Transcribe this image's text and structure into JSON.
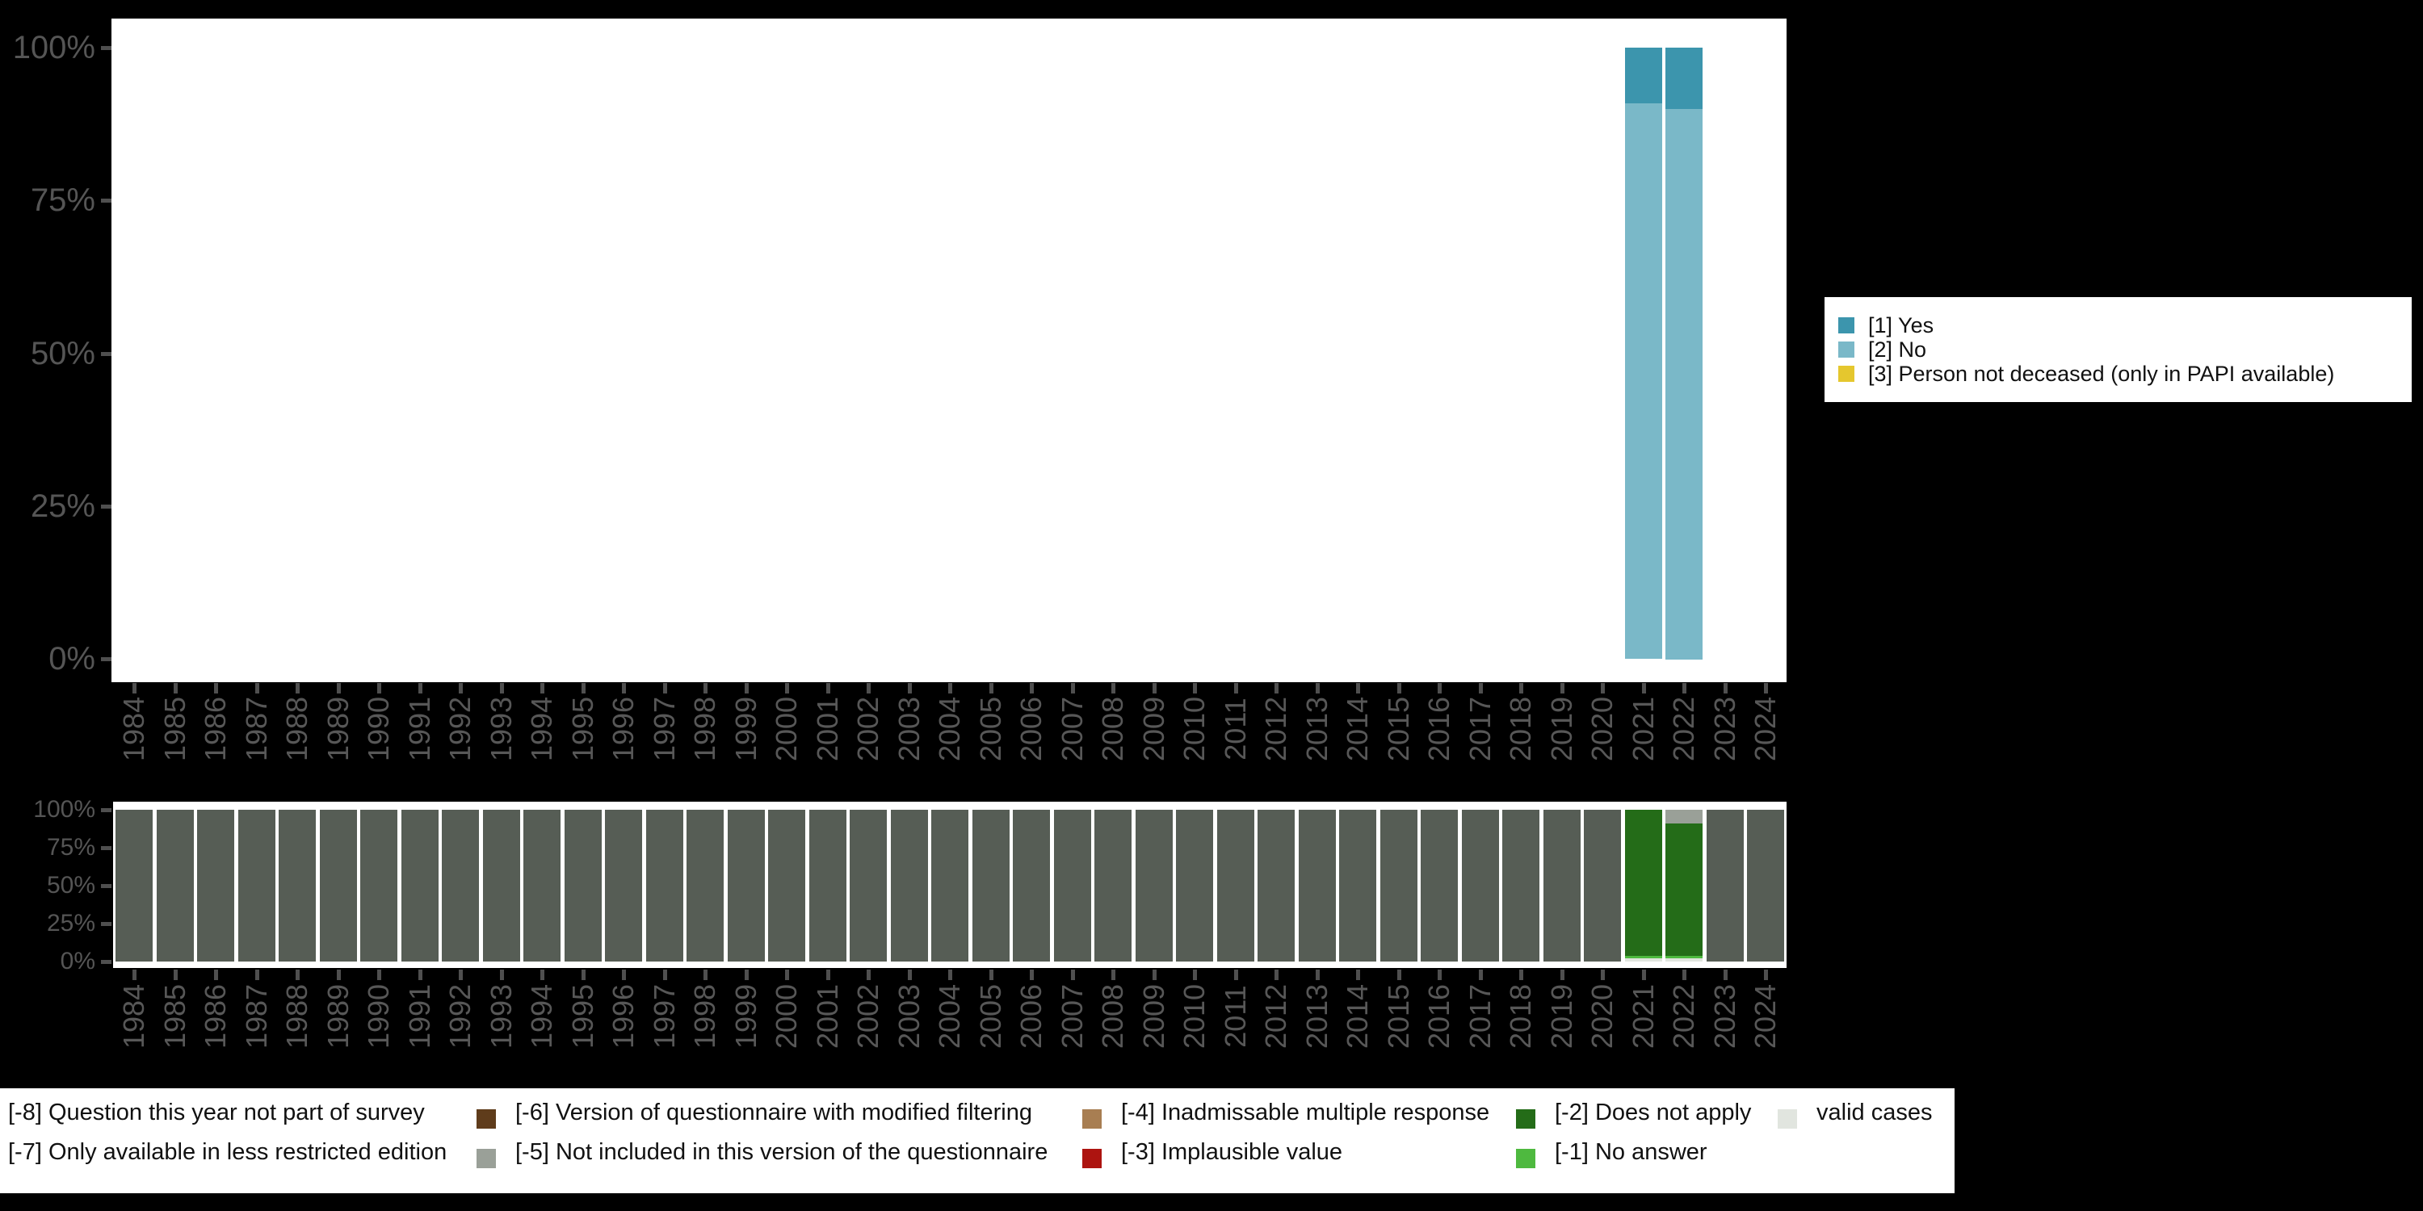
{
  "colors": {
    "background": "#000000",
    "panel": "#ffffff",
    "axis_text": "#555555",
    "tick": "#4f4f4f"
  },
  "chart_data": [
    {
      "id": "response-distribution",
      "type": "bar",
      "stacked": true,
      "title": "",
      "xlabel": "",
      "ylabel": "",
      "ylim": [
        0,
        100
      ],
      "grid": false,
      "y_ticks": [
        {
          "label": "100%",
          "value": 100
        },
        {
          "label": "75%",
          "value": 75
        },
        {
          "label": "50%",
          "value": 50
        },
        {
          "label": "25%",
          "value": 25
        },
        {
          "label": "0%",
          "value": 0
        }
      ],
      "years": [
        "1984",
        "1985",
        "1986",
        "1987",
        "1988",
        "1989",
        "1990",
        "1991",
        "1992",
        "1993",
        "1994",
        "1995",
        "1996",
        "1997",
        "1998",
        "1999",
        "2000",
        "2001",
        "2002",
        "2003",
        "2004",
        "2005",
        "2006",
        "2007",
        "2008",
        "2009",
        "2010",
        "2011",
        "2012",
        "2013",
        "2014",
        "2015",
        "2016",
        "2017",
        "2018",
        "2019",
        "2020",
        "2021",
        "2022",
        "2023",
        "2024"
      ],
      "bars": {
        "2021": [
          {
            "name": "[2] No",
            "value": 91,
            "color": "#7ab8c8"
          },
          {
            "name": "[1] Yes",
            "value": 9,
            "color": "#3c95ad"
          }
        ],
        "2022": [
          {
            "name": "[2] No",
            "value": 90,
            "color": "#7ab8c8"
          },
          {
            "name": "[1] Yes",
            "value": 10,
            "color": "#3c95ad"
          }
        ]
      },
      "legend": {
        "position": "right",
        "entries": [
          {
            "label": "[1] Yes",
            "color": "#3c95ad"
          },
          {
            "label": "[2] No",
            "color": "#7ab8c8"
          },
          {
            "label": "[3] Person not deceased (only in PAPI available)",
            "color": "#e5c72e"
          }
        ]
      }
    },
    {
      "id": "missings",
      "type": "bar",
      "stacked": true,
      "title": "",
      "xlabel": "",
      "ylabel": "",
      "ylim": [
        0,
        100
      ],
      "grid": false,
      "y_ticks": [
        {
          "label": "100%",
          "value": 100
        },
        {
          "label": "75%",
          "value": 75
        },
        {
          "label": "50%",
          "value": 50
        },
        {
          "label": "25%",
          "value": 25
        },
        {
          "label": "0%",
          "value": 0
        }
      ],
      "years": [
        "1984",
        "1985",
        "1986",
        "1987",
        "1988",
        "1989",
        "1990",
        "1991",
        "1992",
        "1993",
        "1994",
        "1995",
        "1996",
        "1997",
        "1998",
        "1999",
        "2000",
        "2001",
        "2002",
        "2003",
        "2004",
        "2005",
        "2006",
        "2007",
        "2008",
        "2009",
        "2010",
        "2011",
        "2012",
        "2013",
        "2014",
        "2015",
        "2016",
        "2017",
        "2018",
        "2019",
        "2020",
        "2021",
        "2022",
        "2023",
        "2024"
      ],
      "default_segments": [
        {
          "name": "[-8] Question this year not part of survey",
          "value": 100,
          "color": "#565d55"
        }
      ],
      "bars": {
        "2021": [
          {
            "name": "valid cases",
            "value": 2,
            "color": "#e1e5df"
          },
          {
            "name": "[-1] No answer",
            "value": 2,
            "color": "#4eb93f"
          },
          {
            "name": "[-2] Does not apply",
            "value": 96,
            "color": "#246c18"
          }
        ],
        "2022": [
          {
            "name": "valid cases",
            "value": 2,
            "color": "#e1e5df"
          },
          {
            "name": "[-1] No answer",
            "value": 2,
            "color": "#4eb93f"
          },
          {
            "name": "[-2] Does not apply",
            "value": 87,
            "color": "#246c18"
          },
          {
            "name": "[-5] Not included in this version of the questionnaire",
            "value": 9,
            "color": "#9aa098"
          }
        ]
      },
      "legend": {
        "position": "bottom",
        "rows": [
          [
            {
              "swatch": null,
              "label": "[-8] Question this year not part of survey"
            },
            {
              "swatch": "#5f3c1b",
              "label": "[-6] Version of questionnaire with modified filtering"
            },
            {
              "swatch": "#a87e52",
              "label": "[-4] Inadmissable multiple response"
            },
            {
              "swatch": "#246c18",
              "label": "[-2] Does not apply"
            },
            {
              "swatch": "#e1e5df",
              "label": "valid cases"
            }
          ],
          [
            {
              "swatch": null,
              "label": "[-7] Only available in less restricted edition"
            },
            {
              "swatch": "#9aa098",
              "label": "[-5] Not included in this version of the questionnaire"
            },
            {
              "swatch": "#ad1410",
              "label": "[-3] Implausible value"
            },
            {
              "swatch": "#4eb93f",
              "label": "[-1] No answer"
            }
          ]
        ]
      }
    }
  ]
}
